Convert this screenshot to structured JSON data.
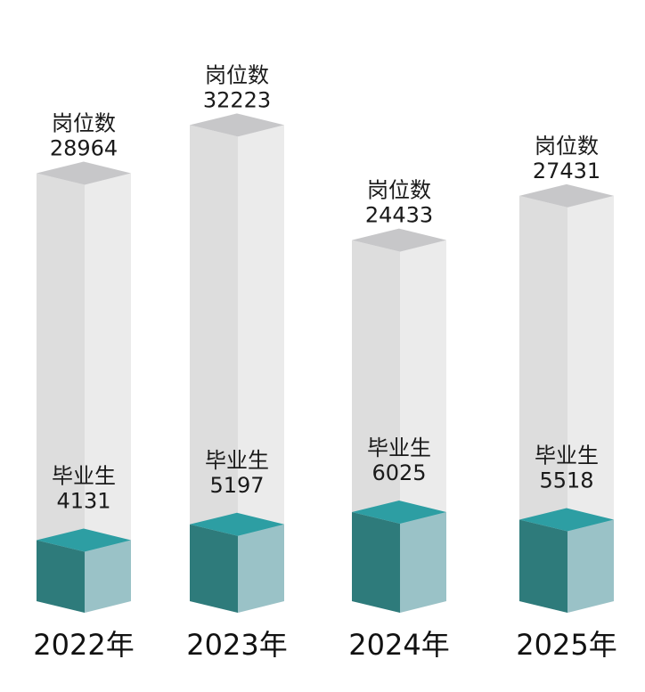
{
  "chart_data": {
    "type": "bar",
    "categories": [
      "2022年",
      "2023年",
      "2024年",
      "2025年"
    ],
    "series": [
      {
        "name": "岗位数",
        "values": [
          28964,
          32223,
          24433,
          27431
        ]
      },
      {
        "name": "毕业生",
        "values": [
          4131,
          5197,
          6025,
          5518
        ]
      }
    ],
    "value_labels": {
      "jobs": [
        "28964",
        "32223",
        "24433",
        "27431"
      ],
      "grads": [
        "4131",
        "5197",
        "6025",
        "5518"
      ]
    },
    "title": "",
    "xlabel": "",
    "ylabel": "",
    "grid": false,
    "legend": "none",
    "colors": {
      "jobs_front": "#dddddd",
      "jobs_side": "#ebebeb",
      "jobs_top": "#c7c7c9",
      "grads_front": "#2e7b7b",
      "grads_side": "#9ac2c7",
      "grads_top": "#2d9ea3"
    }
  }
}
